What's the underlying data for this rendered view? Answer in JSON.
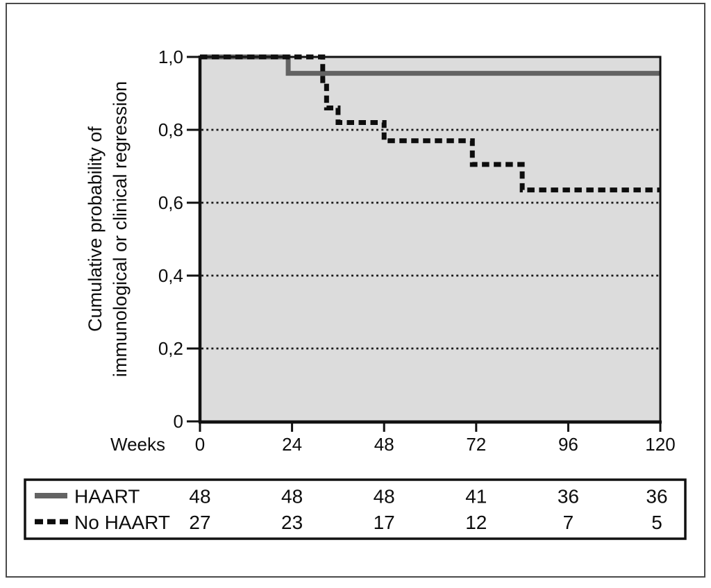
{
  "chart_data": {
    "type": "line",
    "subtype": "kaplan-meier-step",
    "title": "",
    "xlabel": "Weeks",
    "ylabel_lines": [
      "Cumulative probability of",
      "immunological or clinical regression"
    ],
    "xlim": [
      0,
      120
    ],
    "ylim": [
      0,
      1.0
    ],
    "x_ticks": [
      0,
      24,
      48,
      72,
      96,
      120
    ],
    "y_ticks": [
      {
        "value": 1.0,
        "label": "1,0"
      },
      {
        "value": 0.8,
        "label": "0,8"
      },
      {
        "value": 0.6,
        "label": "0,6"
      },
      {
        "value": 0.4,
        "label": "0,4"
      },
      {
        "value": 0.2,
        "label": "0,2"
      },
      {
        "value": 0.0,
        "label": "0"
      }
    ],
    "grid": {
      "y_values": [
        0.8,
        0.6,
        0.4,
        0.2
      ],
      "style": "dashed",
      "color": "#1a1a1a"
    },
    "plot_bg": "#dcdcdc",
    "frame_color": "#111111",
    "legend_position": "bottom-box",
    "series": [
      {
        "name": "HAART",
        "color": "#636363",
        "style": "solid",
        "step_points": [
          [
            0,
            1.0
          ],
          [
            23,
            0.955
          ],
          [
            120,
            0.955
          ]
        ]
      },
      {
        "name": "No HAART",
        "color": "#0d0d0d",
        "style": "dashed",
        "step_points": [
          [
            0,
            1.0
          ],
          [
            32,
            0.935
          ],
          [
            33,
            0.86
          ],
          [
            36,
            0.82
          ],
          [
            48,
            0.77
          ],
          [
            71,
            0.705
          ],
          [
            84,
            0.635
          ],
          [
            120,
            0.635
          ]
        ]
      }
    ],
    "risk_table": {
      "weeks": [
        0,
        24,
        48,
        72,
        96,
        120
      ],
      "rows": [
        {
          "name": "HAART",
          "counts": [
            48,
            48,
            48,
            41,
            36,
            36
          ]
        },
        {
          "name": "No HAART",
          "counts": [
            27,
            23,
            17,
            12,
            7,
            5
          ]
        }
      ]
    }
  }
}
